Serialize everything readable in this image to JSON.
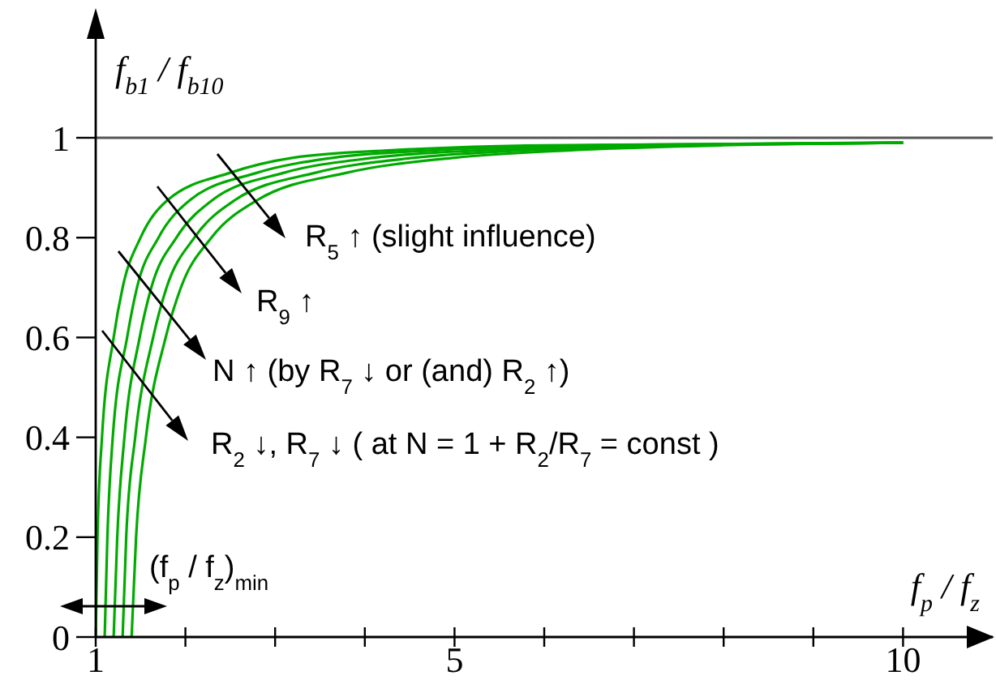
{
  "chart_data": {
    "type": "line",
    "xlabel": "f$_{p}$ / f$_{z}$",
    "ylabel": "f$_{b1}$ / f$_{b10}$",
    "xlim": [
      1,
      11
    ],
    "ylim": [
      0,
      1.25
    ],
    "xticks": [
      1,
      {
        "value": 2,
        "label": null
      },
      {
        "value": 3,
        "label": null
      },
      {
        "value": 4,
        "label": null
      },
      5,
      {
        "value": 6,
        "label": null
      },
      {
        "value": 7,
        "label": null
      },
      {
        "value": 8,
        "label": null
      },
      {
        "value": 9,
        "label": null
      },
      10
    ],
    "yticks": [
      0,
      0.2,
      0.4,
      0.6,
      0.8,
      1
    ],
    "series": [
      {
        "color": "#00aa00",
        "x": [
          1.0,
          1.02,
          1.07,
          1.2,
          1.3,
          1.5,
          1.8,
          2.5,
          3.2,
          4.3,
          6.0,
          10
        ],
        "values": [
          0,
          0.2,
          0.4,
          0.6,
          0.7,
          0.8,
          0.875,
          0.93,
          0.96,
          0.975,
          0.985,
          0.99
        ]
      },
      {
        "color": "#00aa00",
        "x": [
          1.1,
          1.13,
          1.19,
          1.35,
          1.46,
          1.7,
          2.05,
          2.8,
          3.65,
          4.8,
          6.5,
          10
        ],
        "values": [
          0,
          0.2,
          0.4,
          0.6,
          0.7,
          0.8,
          0.875,
          0.93,
          0.96,
          0.975,
          0.985,
          0.99
        ]
      },
      {
        "color": "#00aa00",
        "x": [
          1.2,
          1.24,
          1.32,
          1.49,
          1.62,
          1.9,
          2.3,
          3.1,
          4.1,
          5.3,
          7.0,
          10
        ],
        "values": [
          0,
          0.2,
          0.4,
          0.6,
          0.7,
          0.8,
          0.875,
          0.93,
          0.96,
          0.975,
          0.985,
          0.99
        ]
      },
      {
        "color": "#00aa00",
        "x": [
          1.3,
          1.34,
          1.44,
          1.64,
          1.79,
          2.1,
          2.55,
          3.45,
          4.55,
          5.8,
          7.5,
          10
        ],
        "values": [
          0,
          0.2,
          0.4,
          0.6,
          0.7,
          0.8,
          0.875,
          0.93,
          0.96,
          0.975,
          0.985,
          0.99
        ]
      },
      {
        "color": "#00aa00",
        "x": [
          1.4,
          1.45,
          1.56,
          1.78,
          1.95,
          2.29,
          2.8,
          3.8,
          5.0,
          6.3,
          8.0,
          10
        ],
        "values": [
          0,
          0.2,
          0.4,
          0.6,
          0.7,
          0.8,
          0.875,
          0.93,
          0.96,
          0.975,
          0.985,
          0.99
        ]
      }
    ],
    "ref_lines": [
      {
        "axis": "y",
        "value": 1,
        "color": "#555555"
      }
    ],
    "annotations": [
      "R$_{5}$ ↑ (slight influence)",
      "R$_{9}$ ↑",
      "N ↑ (by R$_{7}$ ↓ or (and) R$_{2}$ ↑)",
      "R$_{2}$ ↓, R$_{7}$ ↓ ( at N = 1 + R$_{2}$/R$_{7}$ = const )",
      "(f$_{p}$ / f$_{z}$)$_{min}$"
    ]
  }
}
